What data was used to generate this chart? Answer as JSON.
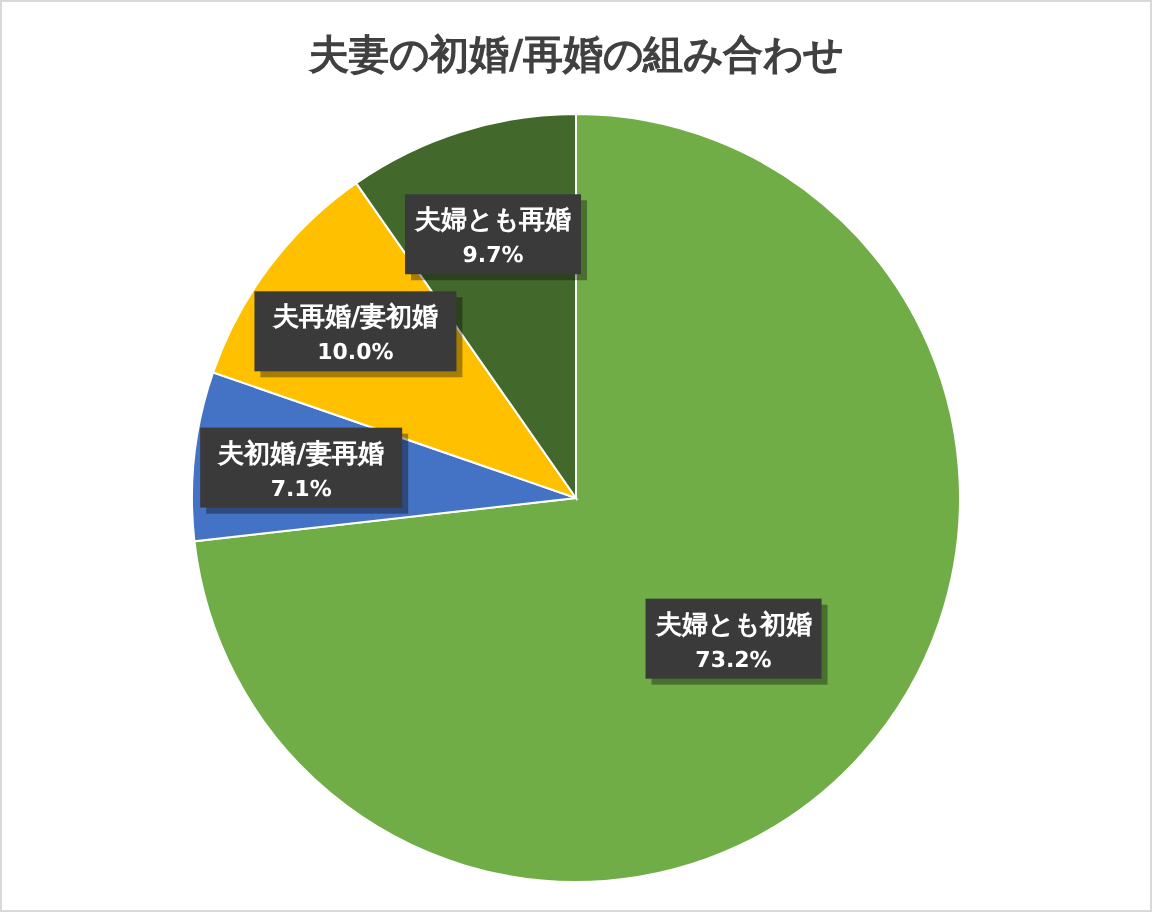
{
  "chart_data": {
    "type": "pie",
    "title": "夫妻の初婚/再婚の組み合わせ",
    "categories": [
      "夫婦とも初婚",
      "夫初婚/妻再婚",
      "夫再婚/妻初婚",
      "夫婦とも再婚"
    ],
    "values": [
      73.2,
      7.1,
      10.0,
      9.7
    ],
    "colors": [
      "#70ad47",
      "#4472c4",
      "#ffc000",
      "#43682b"
    ],
    "value_labels": [
      "73.2%",
      "7.1%",
      "10.0%",
      "9.7%"
    ]
  }
}
